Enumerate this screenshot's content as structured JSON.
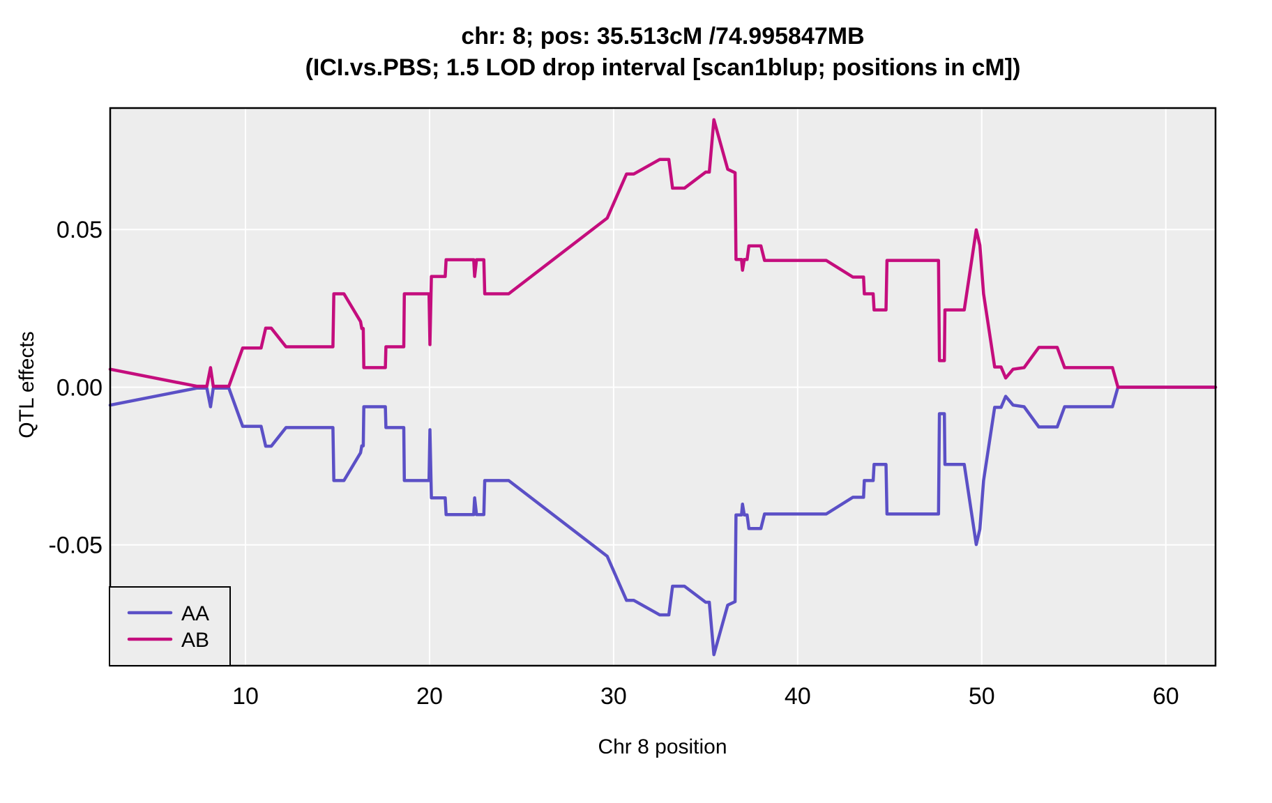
{
  "title": {
    "line1": "chr: 8; pos: 35.513cM /74.995847MB",
    "line2": "(ICI.vs.PBS; 1.5 LOD drop interval [scan1blup; positions in cM])"
  },
  "axes": {
    "x": {
      "label": "Chr 8 position",
      "ticks": [
        10,
        20,
        30,
        40,
        50,
        60
      ],
      "tick_labels": [
        "10",
        "20",
        "30",
        "40",
        "50",
        "60"
      ]
    },
    "y": {
      "label": "QTL effects",
      "ticks": [
        0.05,
        0.0,
        -0.05
      ],
      "tick_labels": [
        "0.05",
        "0.00",
        "-0.05"
      ]
    }
  },
  "legend": {
    "items": [
      {
        "label": "AA",
        "color": "#5B50C6"
      },
      {
        "label": "AB",
        "color": "#C40D7D"
      }
    ]
  },
  "colors": {
    "panel_bg": "#EDEDED",
    "grid": "#FFFFFF",
    "border": "#000000",
    "text": "#000000",
    "aa_line": "#5B50C6",
    "ab_line": "#C40D7D"
  },
  "chart_data": {
    "type": "line",
    "title": "chr: 8; pos: 35.513cM /74.995847MB (ICI.vs.PBS; 1.5 LOD drop interval [scan1blup; positions in cM])",
    "xlabel": "Chr 8 position",
    "ylabel": "QTL effects",
    "xlim": [
      2.65,
      62.7
    ],
    "ylim": [
      -0.0883,
      0.0885
    ],
    "x_ticks": [
      10,
      20,
      30,
      40,
      50,
      60
    ],
    "y_ticks": [
      0.05,
      0.0,
      -0.05
    ],
    "grid": "white-major-on-gray",
    "legend_position": "bottom-left-inside",
    "series": [
      {
        "name": "AA",
        "color": "#5B50C6",
        "points": [
          [
            2.65,
            -0.0057
          ],
          [
            7.35,
            -0.0003
          ],
          [
            7.9,
            -0.0003
          ],
          [
            8.1,
            -0.0062
          ],
          [
            8.25,
            -0.0003
          ],
          [
            9.1,
            -0.0003
          ],
          [
            9.85,
            -0.0124
          ],
          [
            10.85,
            -0.0124
          ],
          [
            11.1,
            -0.0187
          ],
          [
            11.4,
            -0.0187
          ],
          [
            12.2,
            -0.0128
          ],
          [
            14.75,
            -0.0128
          ],
          [
            14.8,
            -0.0296
          ],
          [
            15.35,
            -0.0296
          ],
          [
            16.25,
            -0.0208
          ],
          [
            16.32,
            -0.0186
          ],
          [
            16.4,
            -0.0186
          ],
          [
            16.43,
            -0.0062
          ],
          [
            17.6,
            -0.0062
          ],
          [
            17.63,
            -0.0128
          ],
          [
            18.6,
            -0.0128
          ],
          [
            18.63,
            -0.0296
          ],
          [
            19.97,
            -0.0296
          ],
          [
            20.02,
            -0.0135
          ],
          [
            20.1,
            -0.0351
          ],
          [
            20.85,
            -0.0351
          ],
          [
            20.9,
            -0.0404
          ],
          [
            22.4,
            -0.0404
          ],
          [
            22.45,
            -0.0351
          ],
          [
            22.55,
            -0.0404
          ],
          [
            22.95,
            -0.0404
          ],
          [
            23.0,
            -0.0296
          ],
          [
            24.3,
            -0.0296
          ],
          [
            29.65,
            -0.0536
          ],
          [
            30.7,
            -0.0676
          ],
          [
            31.1,
            -0.0676
          ],
          [
            32.5,
            -0.0722
          ],
          [
            33.0,
            -0.0722
          ],
          [
            33.2,
            -0.0631
          ],
          [
            33.85,
            -0.0631
          ],
          [
            35.0,
            -0.0682
          ],
          [
            35.2,
            -0.0682
          ],
          [
            35.45,
            -0.0848
          ],
          [
            36.2,
            -0.0691
          ],
          [
            36.6,
            -0.068
          ],
          [
            36.65,
            -0.0405
          ],
          [
            36.95,
            -0.0405
          ],
          [
            37.0,
            -0.0371
          ],
          [
            37.1,
            -0.0405
          ],
          [
            37.25,
            -0.0405
          ],
          [
            37.35,
            -0.0448
          ],
          [
            38.0,
            -0.0448
          ],
          [
            38.2,
            -0.0402
          ],
          [
            41.55,
            -0.0402
          ],
          [
            43.0,
            -0.0349
          ],
          [
            43.58,
            -0.0349
          ],
          [
            43.62,
            -0.0296
          ],
          [
            44.1,
            -0.0296
          ],
          [
            44.15,
            -0.0245
          ],
          [
            44.8,
            -0.0245
          ],
          [
            44.85,
            -0.0402
          ],
          [
            47.65,
            -0.0402
          ],
          [
            47.7,
            -0.0084
          ],
          [
            47.97,
            -0.0084
          ],
          [
            48.0,
            -0.0245
          ],
          [
            49.05,
            -0.0245
          ],
          [
            49.7,
            -0.0499
          ],
          [
            49.9,
            -0.045
          ],
          [
            50.1,
            -0.0296
          ],
          [
            50.7,
            -0.0064
          ],
          [
            51.05,
            -0.0064
          ],
          [
            51.3,
            -0.0029
          ],
          [
            51.7,
            -0.0057
          ],
          [
            52.3,
            -0.0062
          ],
          [
            53.1,
            -0.0126
          ],
          [
            54.1,
            -0.0126
          ],
          [
            54.5,
            -0.0062
          ],
          [
            57.1,
            -0.0062
          ],
          [
            57.4,
            0.0
          ],
          [
            62.7,
            0.0
          ]
        ]
      },
      {
        "name": "AB",
        "color": "#C40D7D",
        "points": [
          [
            2.65,
            0.0057
          ],
          [
            7.35,
            0.0003
          ],
          [
            7.9,
            0.0003
          ],
          [
            8.1,
            0.0062
          ],
          [
            8.25,
            0.0003
          ],
          [
            9.1,
            0.0003
          ],
          [
            9.85,
            0.0124
          ],
          [
            10.85,
            0.0124
          ],
          [
            11.1,
            0.0187
          ],
          [
            11.4,
            0.0187
          ],
          [
            12.2,
            0.0128
          ],
          [
            14.75,
            0.0128
          ],
          [
            14.8,
            0.0296
          ],
          [
            15.35,
            0.0296
          ],
          [
            16.25,
            0.0208
          ],
          [
            16.32,
            0.0186
          ],
          [
            16.4,
            0.0186
          ],
          [
            16.43,
            0.0062
          ],
          [
            17.6,
            0.0062
          ],
          [
            17.63,
            0.0128
          ],
          [
            18.6,
            0.0128
          ],
          [
            18.63,
            0.0296
          ],
          [
            19.97,
            0.0296
          ],
          [
            20.02,
            0.0135
          ],
          [
            20.1,
            0.0351
          ],
          [
            20.85,
            0.0351
          ],
          [
            20.9,
            0.0404
          ],
          [
            22.4,
            0.0404
          ],
          [
            22.45,
            0.0351
          ],
          [
            22.55,
            0.0404
          ],
          [
            22.95,
            0.0404
          ],
          [
            23.0,
            0.0296
          ],
          [
            24.3,
            0.0296
          ],
          [
            29.65,
            0.0536
          ],
          [
            30.7,
            0.0676
          ],
          [
            31.1,
            0.0676
          ],
          [
            32.5,
            0.0722
          ],
          [
            33.0,
            0.0722
          ],
          [
            33.2,
            0.0631
          ],
          [
            33.85,
            0.0631
          ],
          [
            35.0,
            0.0682
          ],
          [
            35.2,
            0.0682
          ],
          [
            35.45,
            0.0848
          ],
          [
            36.2,
            0.0691
          ],
          [
            36.6,
            0.068
          ],
          [
            36.65,
            0.0405
          ],
          [
            36.95,
            0.0405
          ],
          [
            37.0,
            0.0371
          ],
          [
            37.1,
            0.0405
          ],
          [
            37.25,
            0.0405
          ],
          [
            37.35,
            0.0448
          ],
          [
            38.0,
            0.0448
          ],
          [
            38.2,
            0.0402
          ],
          [
            41.55,
            0.0402
          ],
          [
            43.0,
            0.0349
          ],
          [
            43.58,
            0.0349
          ],
          [
            43.62,
            0.0296
          ],
          [
            44.1,
            0.0296
          ],
          [
            44.15,
            0.0245
          ],
          [
            44.8,
            0.0245
          ],
          [
            44.85,
            0.0402
          ],
          [
            47.65,
            0.0402
          ],
          [
            47.7,
            0.0084
          ],
          [
            47.97,
            0.0084
          ],
          [
            48.0,
            0.0245
          ],
          [
            49.05,
            0.0245
          ],
          [
            49.7,
            0.0499
          ],
          [
            49.9,
            0.045
          ],
          [
            50.1,
            0.0296
          ],
          [
            50.7,
            0.0064
          ],
          [
            51.05,
            0.0064
          ],
          [
            51.3,
            0.0029
          ],
          [
            51.7,
            0.0057
          ],
          [
            52.3,
            0.0062
          ],
          [
            53.1,
            0.0126
          ],
          [
            54.1,
            0.0126
          ],
          [
            54.5,
            0.0062
          ],
          [
            57.1,
            0.0062
          ],
          [
            57.4,
            0.0
          ],
          [
            62.7,
            0.0
          ]
        ]
      }
    ]
  }
}
